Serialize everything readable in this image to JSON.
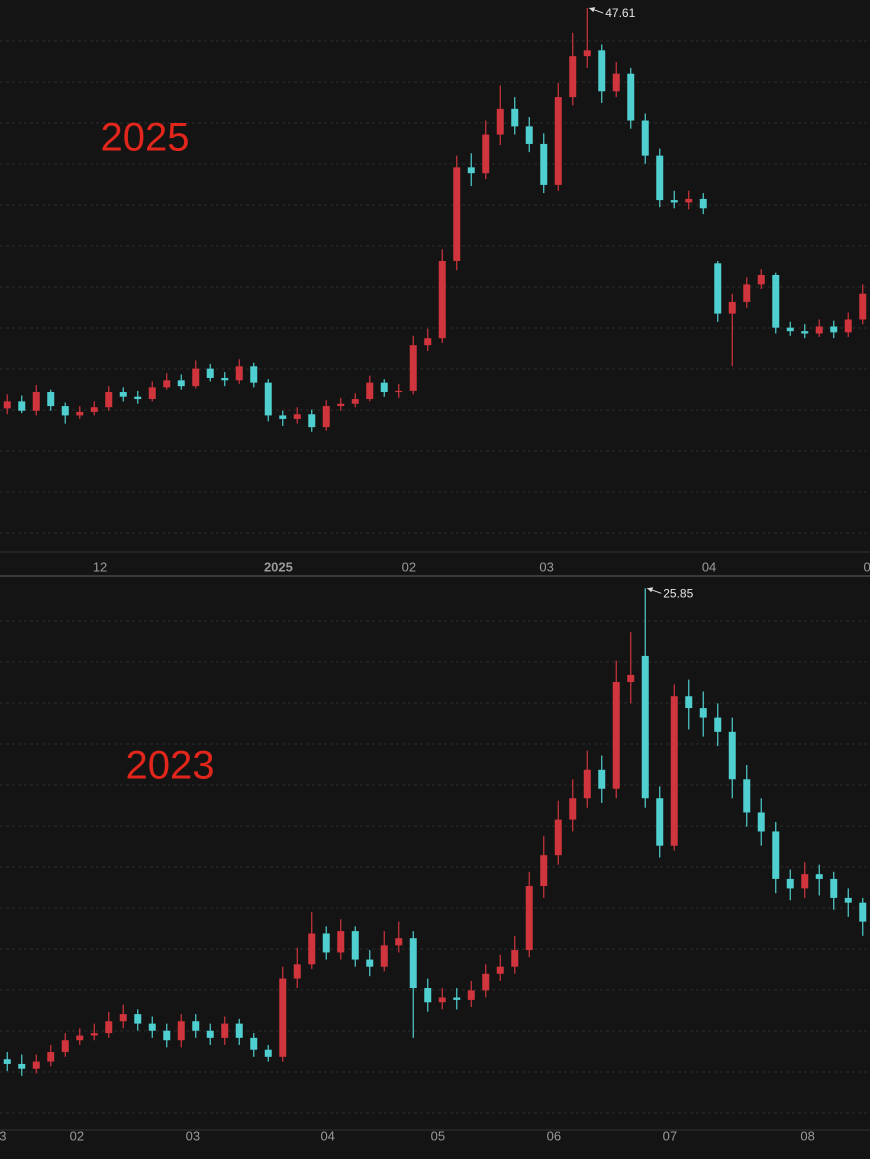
{
  "chart_data": [
    {
      "type": "candlestick",
      "title": "2025",
      "up_color": "#d0343d",
      "down_color": "#4fcfcf",
      "xlim": [
        -0.5,
        59.5
      ],
      "ylim": [
        1.3,
        48.3
      ],
      "xticks": [
        {
          "value": 6.4,
          "label": "12"
        },
        {
          "value": 18.7,
          "label": "2025"
        },
        {
          "value": 27.7,
          "label": "02"
        },
        {
          "value": 37.2,
          "label": "03"
        },
        {
          "value": 48.4,
          "label": "04"
        },
        {
          "value": 59.3,
          "label": "0"
        }
      ],
      "open": [
        13.4,
        14.0,
        13.2,
        14.8,
        13.6,
        12.8,
        13.1,
        13.5,
        14.8,
        14.4,
        14.2,
        15.2,
        15.8,
        15.3,
        16.8,
        16.0,
        15.8,
        17.0,
        15.6,
        12.8,
        12.5,
        12.9,
        11.8,
        13.6,
        13.8,
        14.2,
        15.6,
        14.8,
        14.9,
        18.8,
        19.4,
        26.0,
        34.0,
        33.5,
        36.8,
        39.0,
        37.5,
        36.0,
        32.5,
        40.0,
        43.5,
        44.0,
        40.5,
        42.0,
        38.0,
        35.0,
        31.2,
        31.0,
        31.3,
        25.8,
        21.5,
        22.5,
        24.0,
        24.8,
        20.3,
        20.0,
        19.8,
        20.4,
        19.9,
        21.0
      ],
      "high": [
        14.6,
        14.5,
        15.4,
        15.0,
        13.9,
        13.6,
        14.0,
        15.3,
        15.2,
        14.9,
        15.7,
        16.4,
        16.3,
        17.5,
        17.2,
        16.5,
        17.6,
        17.3,
        15.9,
        13.2,
        13.5,
        13.3,
        14.1,
        14.3,
        14.7,
        16.2,
        15.9,
        15.5,
        19.6,
        20.2,
        27.0,
        35.0,
        35.2,
        38.0,
        41.0,
        40.0,
        38.3,
        36.9,
        41.2,
        45.5,
        47.61,
        44.5,
        43.0,
        42.5,
        38.6,
        35.6,
        32.0,
        32.0,
        31.8,
        26.0,
        23.2,
        24.6,
        25.3,
        25.0,
        20.8,
        20.6,
        21.0,
        20.9,
        21.6,
        24.0
      ],
      "low": [
        12.9,
        13.0,
        12.8,
        13.2,
        12.1,
        12.5,
        12.8,
        13.2,
        14.0,
        13.8,
        14.0,
        15.0,
        15.0,
        15.1,
        15.7,
        15.3,
        15.5,
        15.2,
        12.3,
        11.9,
        12.1,
        11.4,
        11.5,
        13.2,
        13.5,
        14.0,
        14.4,
        14.3,
        14.6,
        18.3,
        19.0,
        25.2,
        32.4,
        33.0,
        35.9,
        36.8,
        35.3,
        31.8,
        32.0,
        39.3,
        42.5,
        39.5,
        40.0,
        37.3,
        34.3,
        30.6,
        30.5,
        30.4,
        30.0,
        20.8,
        17.0,
        22.0,
        23.6,
        19.8,
        19.6,
        19.4,
        19.5,
        19.4,
        19.5,
        20.6
      ],
      "close": [
        14.0,
        13.2,
        14.8,
        13.6,
        12.8,
        13.1,
        13.5,
        14.8,
        14.4,
        14.2,
        15.2,
        15.8,
        15.3,
        16.8,
        16.0,
        15.8,
        17.0,
        15.6,
        12.8,
        12.5,
        12.9,
        11.8,
        13.6,
        13.8,
        14.2,
        15.6,
        14.8,
        14.9,
        18.8,
        19.4,
        26.0,
        34.0,
        33.5,
        36.8,
        39.0,
        37.5,
        36.0,
        32.5,
        40.0,
        43.5,
        44.0,
        40.5,
        42.0,
        38.0,
        35.0,
        31.2,
        31.0,
        31.3,
        30.5,
        21.5,
        22.5,
        24.0,
        24.8,
        20.3,
        20.0,
        19.8,
        20.4,
        19.9,
        21.0,
        23.2
      ]
    },
    {
      "type": "candlestick",
      "title": "2023",
      "up_color": "#d0343d",
      "down_color": "#4fcfcf",
      "xlim": [
        -0.5,
        59.5
      ],
      "ylim": [
        3.1,
        26.2
      ],
      "xticks": [
        {
          "value": -0.3,
          "label": "3"
        },
        {
          "value": 4.8,
          "label": "02"
        },
        {
          "value": 12.8,
          "label": "03"
        },
        {
          "value": 22.1,
          "label": "04"
        },
        {
          "value": 29.7,
          "label": "05"
        },
        {
          "value": 37.7,
          "label": "06"
        },
        {
          "value": 45.7,
          "label": "07"
        },
        {
          "value": 55.2,
          "label": "08"
        }
      ],
      "open": [
        6.0,
        5.8,
        5.6,
        5.9,
        6.3,
        6.8,
        7.0,
        7.1,
        7.6,
        7.9,
        7.5,
        7.2,
        6.8,
        7.6,
        7.2,
        6.9,
        7.5,
        6.9,
        6.4,
        6.1,
        9.4,
        10.0,
        11.3,
        10.5,
        11.4,
        10.2,
        9.9,
        10.8,
        11.1,
        9.0,
        8.4,
        8.6,
        8.5,
        8.9,
        9.6,
        9.9,
        10.6,
        13.3,
        14.6,
        16.1,
        17.0,
        18.2,
        17.4,
        21.9,
        23.0,
        17.0,
        15.0,
        21.3,
        20.8,
        20.4,
        19.8,
        17.8,
        16.4,
        15.6,
        13.6,
        13.2,
        13.8,
        13.6,
        12.8,
        12.6
      ],
      "high": [
        6.3,
        6.2,
        6.2,
        6.6,
        7.1,
        7.3,
        7.5,
        8.0,
        8.3,
        8.1,
        7.8,
        7.5,
        7.9,
        7.9,
        7.5,
        7.8,
        7.7,
        7.1,
        6.6,
        9.9,
        10.7,
        12.2,
        11.6,
        11.9,
        11.6,
        10.6,
        11.4,
        11.8,
        11.4,
        9.4,
        9.0,
        9.0,
        9.3,
        10.0,
        10.4,
        11.2,
        13.9,
        15.4,
        16.9,
        17.8,
        19.0,
        18.8,
        22.8,
        24.0,
        25.85,
        17.5,
        21.8,
        22.0,
        21.5,
        21.0,
        20.4,
        18.4,
        17.0,
        16.0,
        14.0,
        14.3,
        14.2,
        13.9,
        13.2,
        12.8
      ],
      "low": [
        5.5,
        5.3,
        5.4,
        5.7,
        6.1,
        6.6,
        6.8,
        6.9,
        7.3,
        7.2,
        6.9,
        6.5,
        6.5,
        6.9,
        6.6,
        6.6,
        6.6,
        6.1,
        5.9,
        5.9,
        9.0,
        9.8,
        10.2,
        10.2,
        9.9,
        9.5,
        9.7,
        10.5,
        6.9,
        8.0,
        8.1,
        8.1,
        8.2,
        8.6,
        9.3,
        9.6,
        10.3,
        12.8,
        14.2,
        15.6,
        16.6,
        16.8,
        17.0,
        21.0,
        16.6,
        14.5,
        14.8,
        19.9,
        19.6,
        19.2,
        17.0,
        15.8,
        15.0,
        13.0,
        12.7,
        12.8,
        12.9,
        12.3,
        12.0,
        11.2
      ],
      "close": [
        5.8,
        5.6,
        5.9,
        6.3,
        6.8,
        7.0,
        7.1,
        7.6,
        7.9,
        7.5,
        7.2,
        6.8,
        7.6,
        7.2,
        6.9,
        7.5,
        6.9,
        6.4,
        6.1,
        9.4,
        10.0,
        11.3,
        10.5,
        11.4,
        10.2,
        9.9,
        10.8,
        11.1,
        9.0,
        8.4,
        8.6,
        8.5,
        8.9,
        9.6,
        9.9,
        10.6,
        13.3,
        14.6,
        16.1,
        17.0,
        18.2,
        17.4,
        21.9,
        22.2,
        17.0,
        15.0,
        21.3,
        20.8,
        20.4,
        19.8,
        17.8,
        16.4,
        15.6,
        13.6,
        13.2,
        13.8,
        13.6,
        12.8,
        12.6,
        11.8
      ]
    }
  ]
}
